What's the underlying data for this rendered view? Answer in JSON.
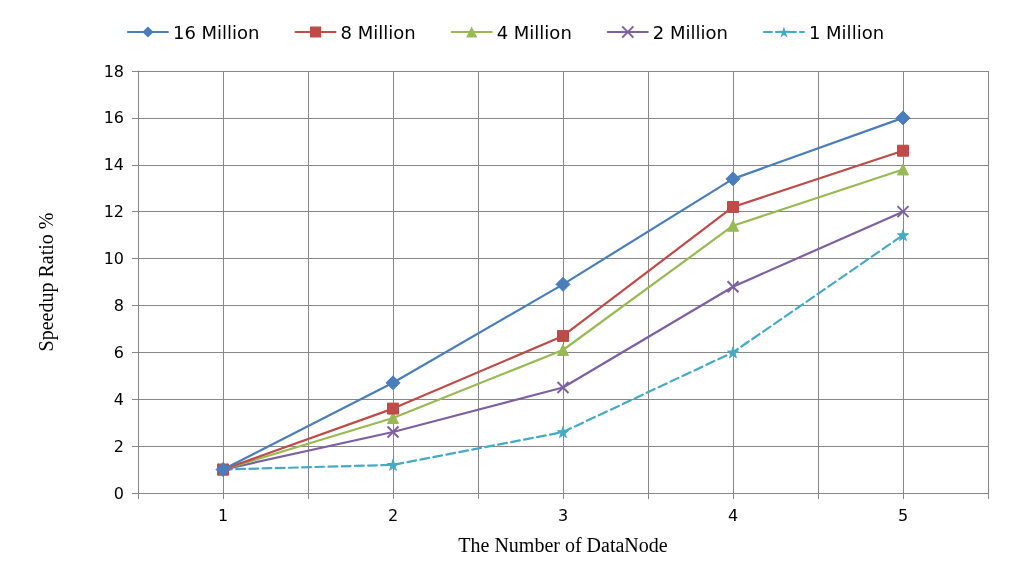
{
  "chart_data": {
    "type": "line",
    "xlabel": "The Number of DataNode",
    "ylabel": "Speedup Ratio %",
    "x": [
      1,
      2,
      3,
      4,
      5
    ],
    "xlim": [
      0.5,
      5.5
    ],
    "xticks": [
      {
        "value": 0.5,
        "label": null
      },
      1,
      {
        "value": 1.5,
        "label": null
      },
      2,
      {
        "value": 2.5,
        "label": null
      },
      3,
      {
        "value": 3.5,
        "label": null
      },
      4,
      {
        "value": 4.5,
        "label": null
      },
      5,
      {
        "value": 5.5,
        "label": null
      }
    ],
    "ylim": [
      0,
      18
    ],
    "yticks": [
      0,
      2,
      4,
      6,
      8,
      10,
      12,
      14,
      16,
      18
    ],
    "grid": true,
    "legend": "top",
    "series": [
      {
        "name": "16 Million",
        "color": "#4a7ebb",
        "marker": "diamond",
        "line_style": "solid",
        "values": [
          1,
          4.7,
          8.9,
          13.4,
          16
        ]
      },
      {
        "name": "8 Million",
        "color": "#be4b48",
        "marker": "square",
        "line_style": "solid",
        "values": [
          1,
          3.6,
          6.7,
          12.2,
          14.6
        ]
      },
      {
        "name": "4 Million",
        "color": "#98b954",
        "marker": "triangle",
        "line_style": "solid",
        "values": [
          1,
          3.2,
          6.1,
          11.4,
          13.8
        ]
      },
      {
        "name": "2 Million",
        "color": "#7d60a0",
        "marker": "cross",
        "line_style": "solid",
        "values": [
          1,
          2.6,
          4.5,
          8.8,
          12
        ]
      },
      {
        "name": "1 Million",
        "color": "#46aac5",
        "marker": "star",
        "line_style": "dashed",
        "values": [
          1,
          1.2,
          2.6,
          6,
          11
        ]
      }
    ]
  }
}
